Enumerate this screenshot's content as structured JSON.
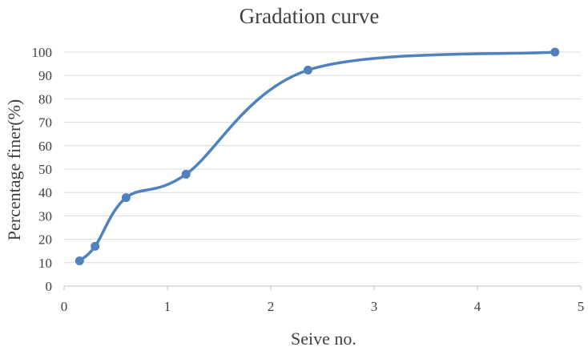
{
  "chart_data": {
    "type": "scatter",
    "title": "Gradation curve",
    "xlabel": "Seive no.",
    "ylabel": "Percentage finer(%)",
    "xlim": [
      0,
      5
    ],
    "ylim": [
      0,
      100
    ],
    "xticks": [
      0,
      1,
      2,
      3,
      4,
      5
    ],
    "yticks": [
      0,
      10,
      20,
      30,
      40,
      50,
      60,
      70,
      80,
      90,
      100
    ],
    "grid": "horizontal",
    "smooth": true,
    "series": [
      {
        "color": "#4f81bd",
        "points": [
          {
            "x": 0.15,
            "y": 10.8
          },
          {
            "x": 0.3,
            "y": 17.0
          },
          {
            "x": 0.6,
            "y": 37.8
          },
          {
            "x": 1.18,
            "y": 47.8
          },
          {
            "x": 2.36,
            "y": 92.3
          },
          {
            "x": 4.75,
            "y": 100
          }
        ]
      }
    ]
  }
}
